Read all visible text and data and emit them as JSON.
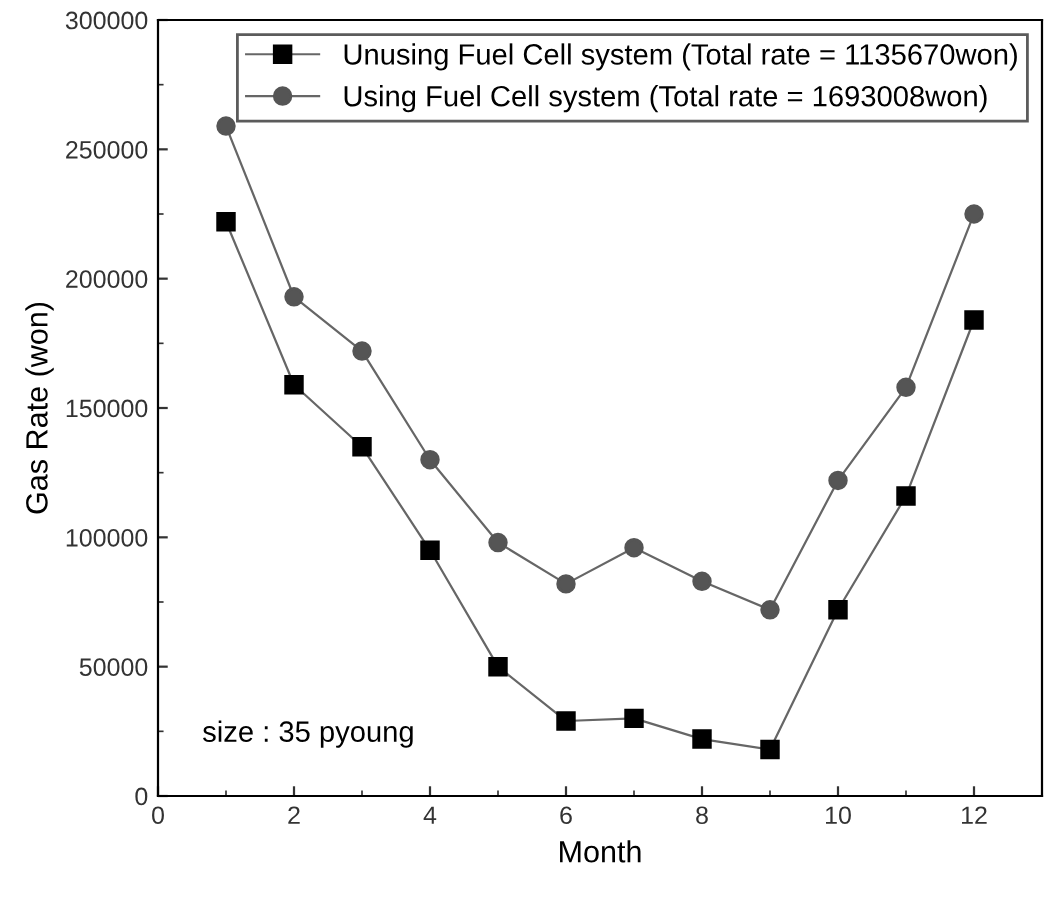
{
  "chart_data": {
    "type": "line",
    "xlabel": "Month",
    "ylabel": "Gas Rate (won)",
    "x": [
      1,
      2,
      3,
      4,
      5,
      6,
      7,
      8,
      9,
      10,
      11,
      12
    ],
    "series": [
      {
        "name": "Unusing Fuel Cell system (Total rate = 1135670won)",
        "color": "#000000",
        "marker": "square",
        "values": [
          222000,
          159000,
          135000,
          95000,
          50000,
          29000,
          30000,
          22000,
          18000,
          72000,
          116000,
          184000
        ]
      },
      {
        "name": "Using Fuel Cell system (Total rate = 1693008won)",
        "color": "#555555",
        "marker": "circle",
        "values": [
          259000,
          193000,
          172000,
          130000,
          98000,
          82000,
          96000,
          83000,
          72000,
          122000,
          158000,
          225000
        ]
      }
    ],
    "xlim": [
      0,
      13
    ],
    "xticks": [
      0,
      2,
      4,
      6,
      8,
      10,
      12
    ],
    "ylim": [
      0,
      300000
    ],
    "yticks": [
      0,
      50000,
      100000,
      150000,
      200000,
      250000,
      300000
    ],
    "annotations": [
      "size : 35 pyoung"
    ],
    "grid": false,
    "legend": "top right",
    "line_style": "solid"
  }
}
